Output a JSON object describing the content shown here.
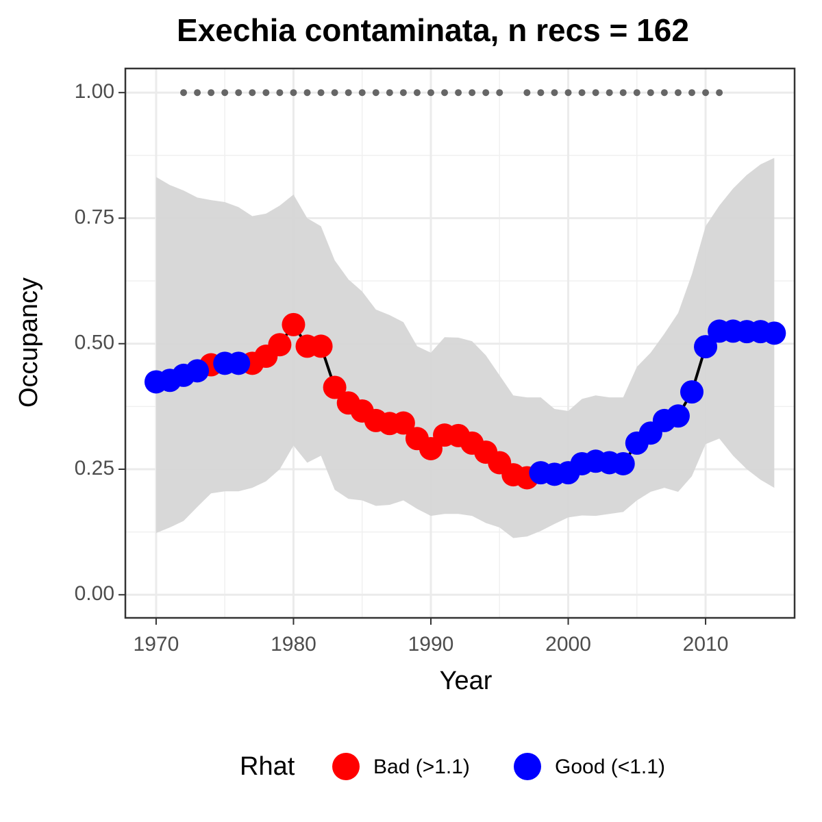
{
  "chart_data": {
    "type": "line",
    "title": "Exechia contaminata, n recs = 162",
    "x_label": "Year",
    "y_label": "Occupancy",
    "legend_title": "Rhat",
    "legend_position": "bottom",
    "x": [
      1970,
      1971,
      1972,
      1973,
      1974,
      1975,
      1976,
      1977,
      1978,
      1979,
      1980,
      1981,
      1982,
      1983,
      1984,
      1985,
      1986,
      1987,
      1988,
      1989,
      1990,
      1991,
      1992,
      1993,
      1994,
      1995,
      1996,
      1997,
      1998,
      1999,
      2000,
      2001,
      2002,
      2003,
      2004,
      2005,
      2006,
      2007,
      2008,
      2009,
      2010,
      2011,
      2012,
      2013,
      2014,
      2015
    ],
    "series": [
      {
        "name": "Bad (>1.1)",
        "color": "#ff0000",
        "values": [
          null,
          null,
          null,
          null,
          0.458,
          null,
          null,
          0.461,
          0.475,
          0.498,
          0.538,
          0.495,
          0.495,
          0.413,
          0.382,
          0.366,
          0.347,
          0.341,
          0.342,
          0.311,
          0.291,
          0.318,
          0.317,
          0.302,
          0.284,
          0.263,
          0.239,
          0.233,
          null,
          null,
          null,
          null,
          null,
          null,
          null,
          null,
          null,
          null,
          null,
          null,
          null,
          null,
          null,
          null,
          null,
          null
        ]
      },
      {
        "name": "Good (<1.1)",
        "color": "#0000ff",
        "values": [
          0.424,
          0.427,
          0.437,
          0.446,
          null,
          0.461,
          0.461,
          null,
          null,
          null,
          null,
          null,
          null,
          null,
          null,
          null,
          null,
          null,
          null,
          null,
          null,
          null,
          null,
          null,
          null,
          null,
          null,
          null,
          0.243,
          0.24,
          0.243,
          0.261,
          0.266,
          0.263,
          0.261,
          0.302,
          0.322,
          0.347,
          0.356,
          0.404,
          0.494,
          0.525,
          0.525,
          0.524,
          0.524,
          0.521
        ]
      }
    ],
    "band": {
      "color": "#d6d6d6",
      "lower": [
        0.123,
        0.134,
        0.147,
        0.175,
        0.202,
        0.206,
        0.206,
        0.213,
        0.226,
        0.25,
        0.297,
        0.263,
        0.277,
        0.209,
        0.191,
        0.188,
        0.177,
        0.179,
        0.188,
        0.171,
        0.157,
        0.161,
        0.161,
        0.157,
        0.143,
        0.134,
        0.113,
        0.116,
        0.127,
        0.141,
        0.154,
        0.158,
        0.157,
        0.161,
        0.165,
        0.188,
        0.205,
        0.213,
        0.205,
        0.236,
        0.3,
        0.311,
        0.277,
        0.25,
        0.229,
        0.213
      ],
      "upper": [
        0.832,
        0.816,
        0.805,
        0.791,
        0.786,
        0.782,
        0.772,
        0.754,
        0.759,
        0.775,
        0.797,
        0.75,
        0.734,
        0.666,
        0.628,
        0.604,
        0.568,
        0.557,
        0.543,
        0.495,
        0.482,
        0.513,
        0.512,
        0.505,
        0.477,
        0.437,
        0.397,
        0.393,
        0.393,
        0.37,
        0.366,
        0.39,
        0.397,
        0.393,
        0.393,
        0.454,
        0.482,
        0.52,
        0.561,
        0.638,
        0.734,
        0.775,
        0.809,
        0.836,
        0.857,
        0.87
      ]
    },
    "records": {
      "color": "#666666",
      "level": 1,
      "x": [
        1972,
        1973,
        1974,
        1975,
        1976,
        1977,
        1978,
        1979,
        1980,
        1981,
        1982,
        1983,
        1984,
        1985,
        1986,
        1987,
        1988,
        1989,
        1990,
        1991,
        1992,
        1993,
        1994,
        1995,
        1997,
        1998,
        1999,
        2000,
        2001,
        2002,
        2003,
        2004,
        2005,
        2006,
        2007,
        2008,
        2009,
        2010,
        2011
      ]
    },
    "xlim": [
      1967.76,
      2016.48
    ],
    "ylim": [
      -0.046,
      1.048
    ],
    "xticks": [
      1970,
      1980,
      1990,
      2000,
      2010
    ],
    "yticks": [
      {
        "value": 0,
        "label": "0.00"
      },
      {
        "value": 0.25,
        "label": "0.25"
      },
      {
        "value": 0.5,
        "label": "0.50"
      },
      {
        "value": 0.75,
        "label": "0.75"
      },
      {
        "value": 1,
        "label": "1.00"
      }
    ],
    "grid": true
  }
}
